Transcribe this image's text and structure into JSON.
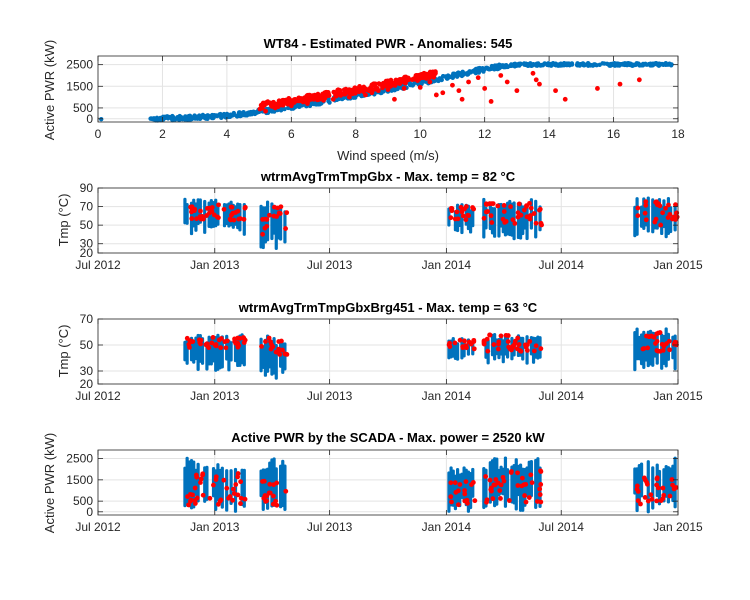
{
  "chart_data": [
    {
      "type": "scatter",
      "title": "WT84 - Estimated PWR - Anomalies: 545",
      "xlabel": "Wind speed (m/s)",
      "ylabel": "Active PWR (kW)",
      "xlim": [
        0,
        18
      ],
      "ylim": [
        -150,
        2900
      ],
      "xticks": [
        0,
        2,
        4,
        6,
        8,
        10,
        12,
        14,
        16,
        18
      ],
      "yticks": [
        0,
        500,
        1500,
        2500
      ],
      "grid": true,
      "series": [
        {
          "color": "#0072BD",
          "kind": "power_curve",
          "points": [
            [
              0.1,
              -20
            ],
            [
              1.7,
              10
            ],
            [
              2.5,
              30
            ],
            [
              3,
              60
            ],
            [
              3.5,
              100
            ],
            [
              4,
              160
            ],
            [
              4.5,
              230
            ],
            [
              5,
              320
            ],
            [
              5.5,
              420
            ],
            [
              6,
              540
            ],
            [
              6.5,
              670
            ],
            [
              7,
              800
            ],
            [
              7.5,
              930
            ],
            [
              8,
              1060
            ],
            [
              8.5,
              1200
            ],
            [
              9,
              1350
            ],
            [
              9.5,
              1500
            ],
            [
              10,
              1660
            ],
            [
              10.5,
              1820
            ],
            [
              11,
              1980
            ],
            [
              11.5,
              2140
            ],
            [
              12,
              2290
            ],
            [
              12.5,
              2420
            ],
            [
              13,
              2490
            ],
            [
              13.5,
              2510
            ],
            [
              14,
              2510
            ],
            [
              15,
              2510
            ],
            [
              16,
              2510
            ],
            [
              17,
              2510
            ],
            [
              17.8,
              2510
            ]
          ]
        },
        {
          "color": "#FF0000",
          "kind": "anomalies",
          "points": [
            [
              5.2,
              350
            ],
            [
              5.5,
              500
            ],
            [
              6,
              600
            ],
            [
              6.5,
              700
            ],
            [
              7,
              850
            ],
            [
              7.3,
              900
            ],
            [
              7.8,
              1000
            ],
            [
              8.3,
              1100
            ],
            [
              8.5,
              1200
            ],
            [
              8.7,
              1300
            ],
            [
              9,
              1350
            ],
            [
              9.5,
              1400
            ],
            [
              10,
              1450
            ],
            [
              10.3,
              1700
            ],
            [
              10.7,
              1200
            ],
            [
              11,
              1550
            ],
            [
              11.3,
              900
            ],
            [
              11.5,
              1700
            ],
            [
              11.8,
              1900
            ],
            [
              12,
              1400
            ],
            [
              12.2,
              800
            ],
            [
              12.5,
              2000
            ],
            [
              12.7,
              1700
            ],
            [
              13,
              1300
            ],
            [
              13.5,
              2100
            ],
            [
              13.6,
              1800
            ],
            [
              13.7,
              1600
            ],
            [
              14.2,
              1300
            ],
            [
              14.5,
              900
            ],
            [
              15.5,
              1400
            ],
            [
              16.2,
              1600
            ],
            [
              16.8,
              1800
            ],
            [
              9.2,
              900
            ],
            [
              10.5,
              1100
            ],
            [
              11.2,
              1300
            ]
          ]
        }
      ]
    },
    {
      "type": "scatter",
      "title": "wtrmAvgTrmTmpGbx - Max. temp = 82 °C",
      "ylabel": "Tmp (°C)",
      "xlabel": "",
      "xlim": [
        "2012-07-01",
        "2015-01-01"
      ],
      "ylim": [
        20,
        90
      ],
      "xticks": [
        "Jul 2012",
        "Jan 2013",
        "Jul 2013",
        "Jan 2014",
        "Jul 2014",
        "Jan 2015"
      ],
      "yticks": [
        20,
        30,
        50,
        70,
        90
      ],
      "grid": true,
      "blocks": [
        {
          "from": "2012-11-15",
          "to": "2013-02-20",
          "low": 40,
          "high": 78,
          "anomaly_low": 55,
          "anomaly_high": 72
        },
        {
          "from": "2013-03-15",
          "to": "2013-04-25",
          "low": 25,
          "high": 75,
          "anomaly_low": 40,
          "anomaly_high": 70
        },
        {
          "from": "2014-01-05",
          "to": "2014-02-15",
          "low": 40,
          "high": 72,
          "anomaly_low": 55,
          "anomaly_high": 70
        },
        {
          "from": "2014-03-01",
          "to": "2014-06-01",
          "low": 35,
          "high": 78,
          "anomaly_low": 50,
          "anomaly_high": 74
        },
        {
          "from": "2014-10-25",
          "to": "2014-12-31",
          "low": 35,
          "high": 80,
          "anomaly_low": 50,
          "anomaly_high": 76
        }
      ]
    },
    {
      "type": "scatter",
      "title": "wtrmAvgTrmTmpGbxBrg451 - Max. temp = 63 °C",
      "ylabel": "Tmp (°C)",
      "xlabel": "",
      "xlim": [
        "2012-07-01",
        "2015-01-01"
      ],
      "ylim": [
        20,
        70
      ],
      "xticks": [
        "Jul 2012",
        "Jan 2013",
        "Jul 2013",
        "Jan 2014",
        "Jul 2014",
        "Jan 2015"
      ],
      "yticks": [
        20,
        30,
        50,
        70
      ],
      "grid": true,
      "blocks": [
        {
          "from": "2012-11-15",
          "to": "2013-02-20",
          "low": 30,
          "high": 58,
          "anomaly_low": 47,
          "anomaly_high": 56
        },
        {
          "from": "2013-03-15",
          "to": "2013-04-25",
          "low": 22,
          "high": 57,
          "anomaly_low": 42,
          "anomaly_high": 56
        },
        {
          "from": "2014-01-05",
          "to": "2014-02-15",
          "low": 38,
          "high": 55,
          "anomaly_low": 47,
          "anomaly_high": 54
        },
        {
          "from": "2014-03-01",
          "to": "2014-06-01",
          "low": 35,
          "high": 59,
          "anomaly_low": 45,
          "anomaly_high": 58
        },
        {
          "from": "2014-10-25",
          "to": "2014-12-31",
          "low": 30,
          "high": 63,
          "anomaly_low": 45,
          "anomaly_high": 60
        }
      ]
    },
    {
      "type": "scatter",
      "title": "Active PWR by the SCADA - Max. power = 2520 kW",
      "ylabel": "Active PWR (kW)",
      "xlabel": "",
      "xlim": [
        "2012-07-01",
        "2015-01-01"
      ],
      "ylim": [
        -150,
        2900
      ],
      "xticks": [
        "Jul 2012",
        "Jan 2013",
        "Jul 2013",
        "Jan 2014",
        "Jul 2014",
        "Jan 2015"
      ],
      "yticks": [
        0,
        500,
        1500,
        2500
      ],
      "grid": true,
      "blocks": [
        {
          "from": "2012-11-15",
          "to": "2013-02-20",
          "low": 0,
          "high": 2520,
          "anomaly_low": 300,
          "anomaly_high": 1800
        },
        {
          "from": "2013-03-15",
          "to": "2013-04-25",
          "low": 0,
          "high": 2520,
          "anomaly_low": 300,
          "anomaly_high": 1500
        },
        {
          "from": "2014-01-05",
          "to": "2014-02-15",
          "low": 0,
          "high": 2200,
          "anomaly_low": 300,
          "anomaly_high": 1500
        },
        {
          "from": "2014-03-01",
          "to": "2014-06-01",
          "low": 0,
          "high": 2520,
          "anomaly_low": 300,
          "anomaly_high": 2000
        },
        {
          "from": "2014-10-25",
          "to": "2014-12-31",
          "low": 0,
          "high": 2520,
          "anomaly_low": 300,
          "anomaly_high": 1600
        }
      ]
    }
  ],
  "colors": {
    "normal": "#0072BD",
    "anomaly": "#FF0000",
    "axis": "#262626",
    "grid": "#e3e3e3"
  }
}
